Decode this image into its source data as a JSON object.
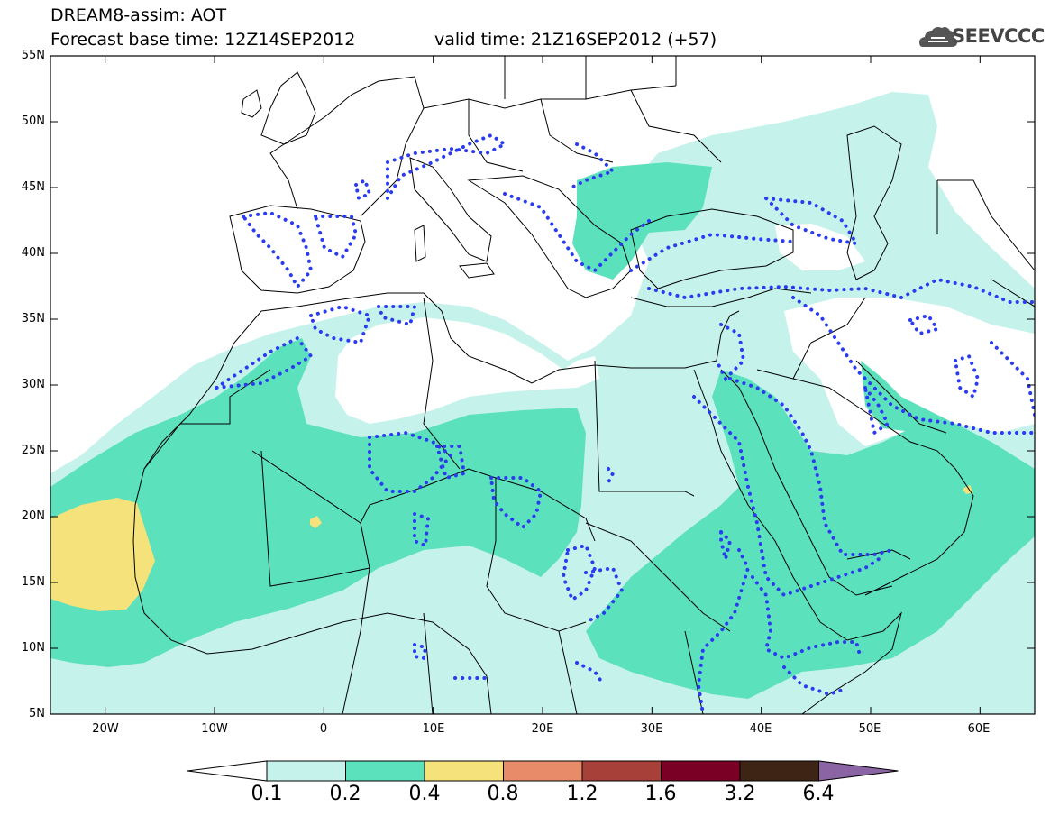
{
  "title": {
    "line1": "DREAM8-assim: AOT",
    "base_time": "Forecast base time: 12Z14SEP2012",
    "valid_time": "valid time: 21Z16SEP2012 (+57)"
  },
  "logo": {
    "text": "SEEVCCC",
    "icon": "cloud-icon"
  },
  "map": {
    "lon_range": [
      -25,
      65
    ],
    "lat_range": [
      5,
      55
    ],
    "lat_ticks": [
      "55N",
      "50N",
      "45N",
      "40N",
      "35N",
      "30N",
      "25N",
      "20N",
      "15N",
      "10N",
      "5N"
    ],
    "lon_ticks": [
      "20W",
      "10W",
      "0",
      "10E",
      "20E",
      "30E",
      "40E",
      "50E",
      "60E"
    ]
  },
  "colorbar": {
    "levels": [
      "0.1",
      "0.2",
      "0.4",
      "0.8",
      "1.2",
      "1.6",
      "3.2",
      "6.4"
    ],
    "colors": [
      "#ffffff",
      "#c6f2ec",
      "#5ce1bd",
      "#f6e27a",
      "#e88b68",
      "#a8403a",
      "#7a0026",
      "#3d2415",
      "#8b64a4"
    ]
  },
  "colors": {
    "aot_low": "#c6f2ec",
    "aot_mid": "#5ce1bd",
    "aot_high": "#f6e27a",
    "contour_dotted": "#2b3cf0"
  }
}
